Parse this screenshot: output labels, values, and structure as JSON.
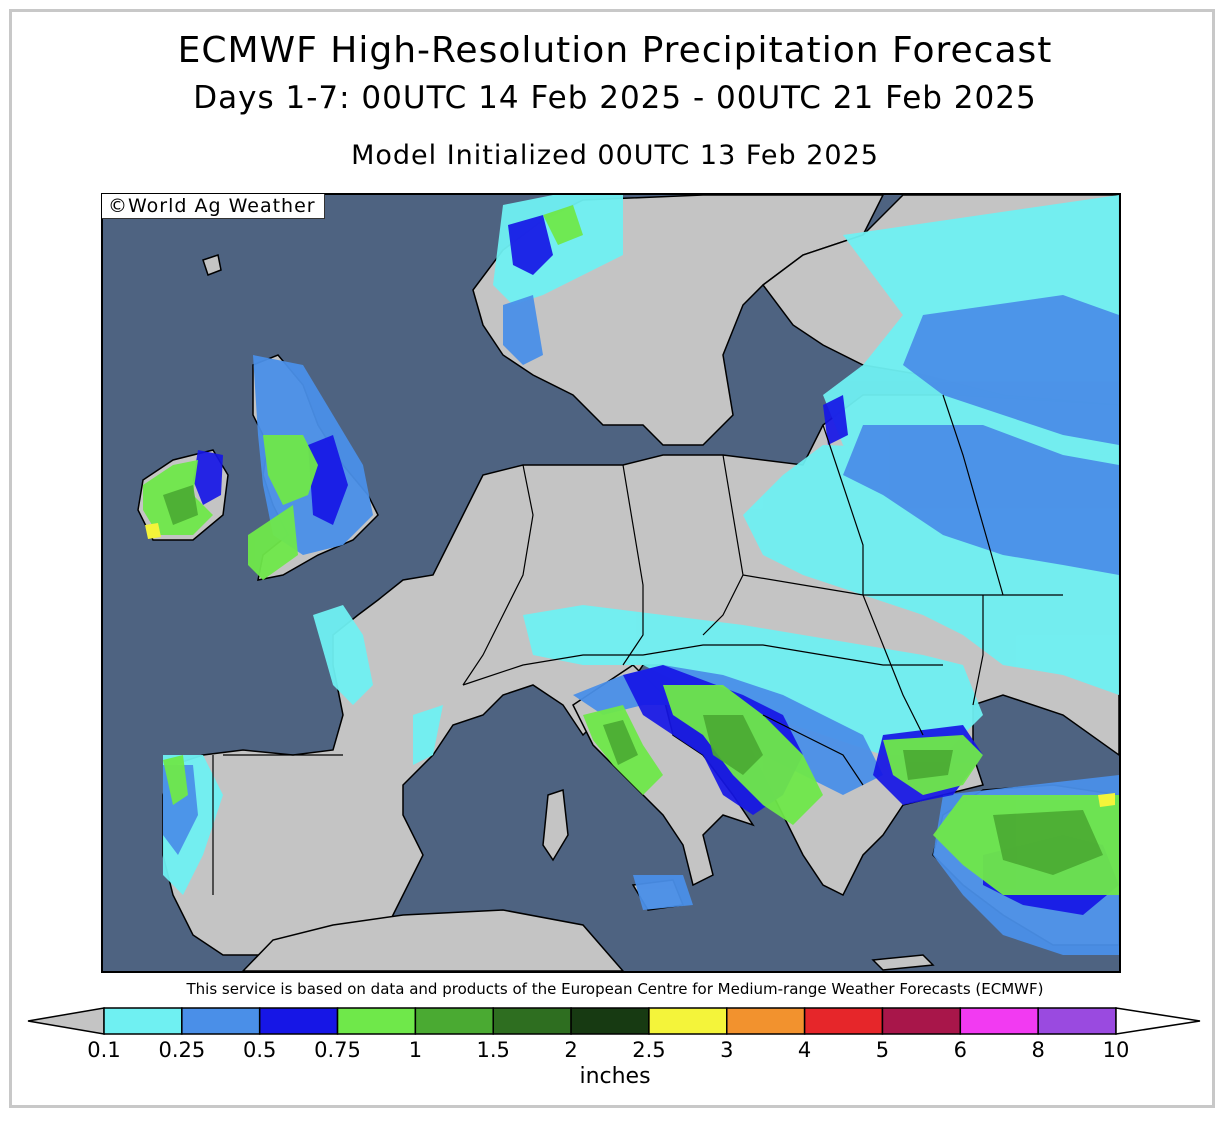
{
  "title": {
    "line1": "ECMWF High-Resolution Precipitation Forecast",
    "line2": "Days 1-7: 00UTC 14 Feb 2025 - 00UTC 21 Feb 2025",
    "line3": "Model Initialized 00UTC 13 Feb 2025"
  },
  "map": {
    "copyright": "©World Ag Weather",
    "region": "Europe",
    "colors": {
      "ocean": "#4e6381",
      "land_no_precip": "#c4c4c4",
      "border": "#000000"
    }
  },
  "footer": {
    "service_note": "This service is based on data and products of the European Centre for Medium-range Weather Forecasts (ECMWF)"
  },
  "colorbar": {
    "units": "inches",
    "tick_labels": [
      "0.1",
      "0.25",
      "0.5",
      "0.75",
      "1",
      "1.5",
      "2",
      "2.5",
      "3",
      "4",
      "5",
      "6",
      "8",
      "10"
    ],
    "below_color": "#c4c4c4",
    "above_color": "#ffffff",
    "colors": [
      "#6ff0f2",
      "#4a8fe8",
      "#1616e6",
      "#6fe84a",
      "#4aaa32",
      "#2e6e20",
      "#173a12",
      "#f4f43a",
      "#f2922e",
      "#e6262a",
      "#a8164a",
      "#f23af2",
      "#9a4ae0"
    ]
  }
}
